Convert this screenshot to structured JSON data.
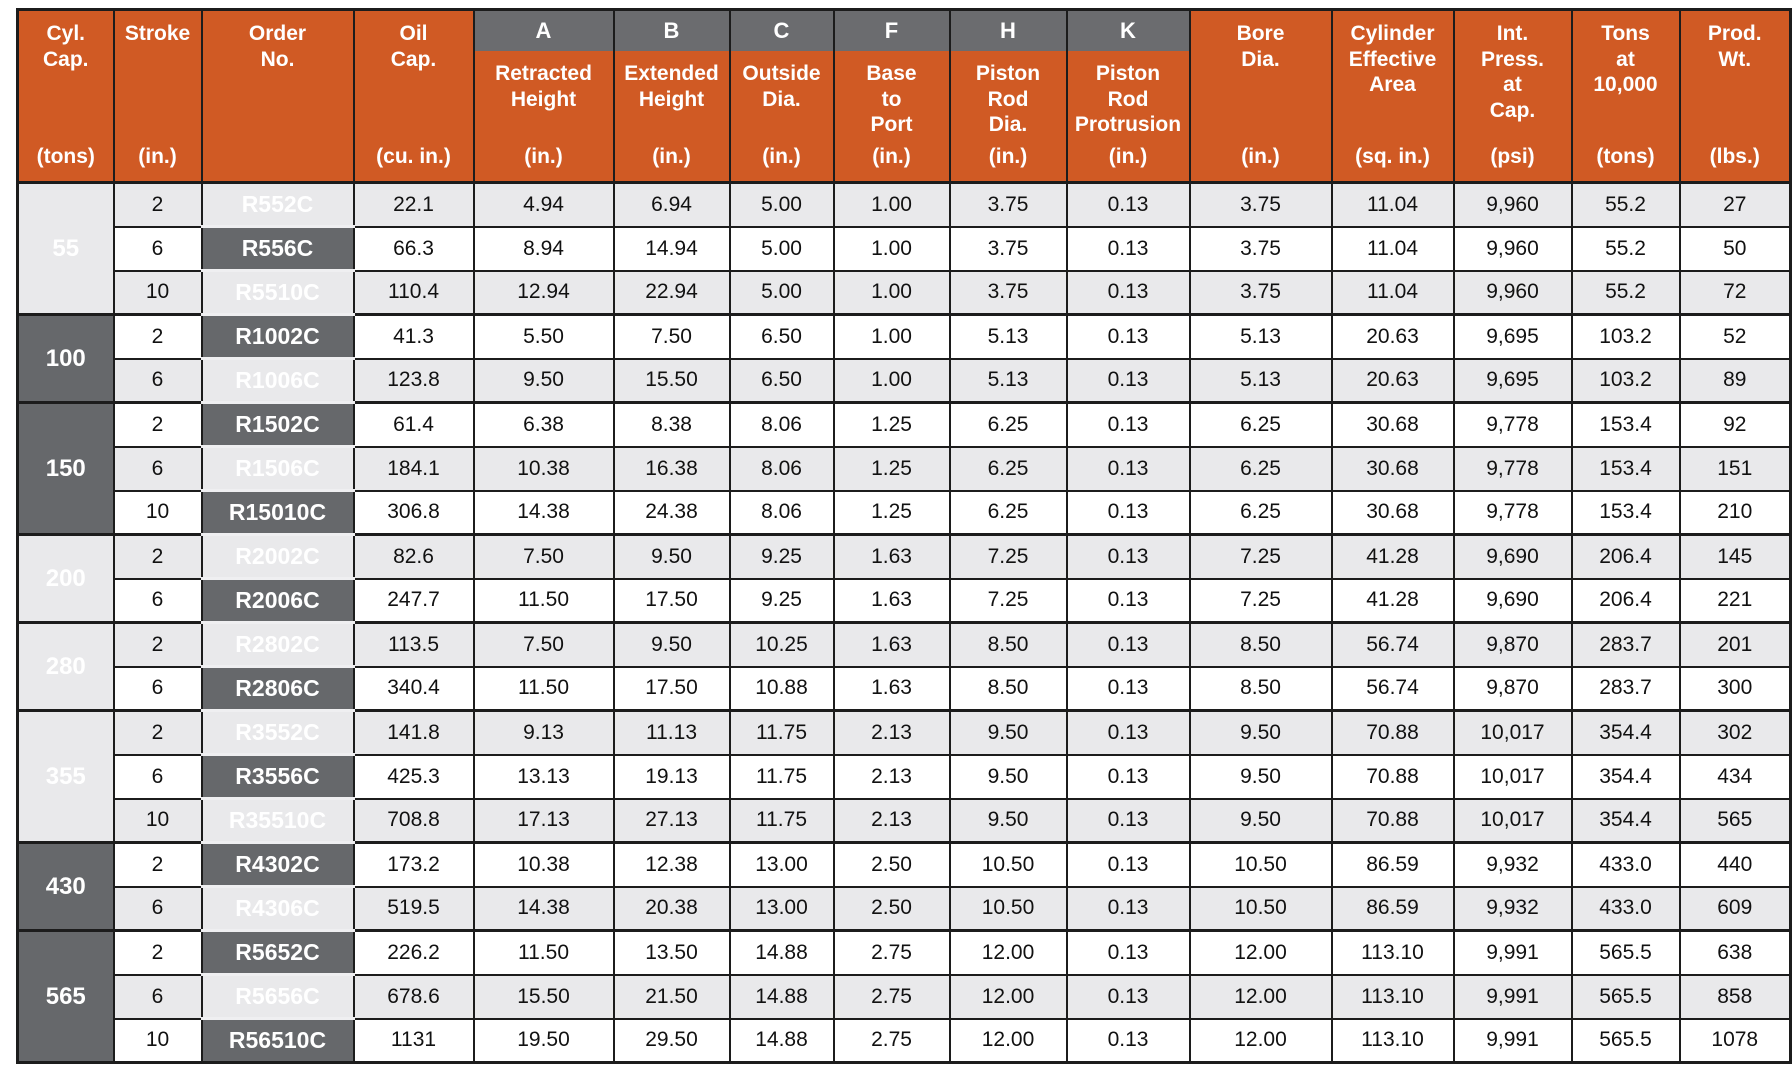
{
  "colors": {
    "header_orange": "#D05A24",
    "header_gray": "#6B6C6F",
    "group_gray": "#66686B",
    "row_stripe": "#E9E9EB",
    "row_white": "#FFFFFF",
    "grid": "#1C1C1C",
    "order_sep": "#EFEFF1"
  },
  "chart_data": {
    "type": "table",
    "columns": [
      {
        "id": "cyl-cap",
        "letter": "",
        "label": "Cyl.\nCap.",
        "unit": "(tons)"
      },
      {
        "id": "stroke",
        "letter": "",
        "label": "Stroke",
        "unit": "(in.)"
      },
      {
        "id": "order-no",
        "letter": "",
        "label": "Order\nNo.",
        "unit": ""
      },
      {
        "id": "oil-cap",
        "letter": "",
        "label": "Oil\nCap.",
        "unit": "(cu. in.)"
      },
      {
        "id": "a-retracted-height",
        "letter": "A",
        "label": "Retracted\nHeight",
        "unit": "(in.)"
      },
      {
        "id": "b-extended-height",
        "letter": "B",
        "label": "Extended\nHeight",
        "unit": "(in.)"
      },
      {
        "id": "c-outside-dia",
        "letter": "C",
        "label": "Outside\nDia.",
        "unit": "(in.)"
      },
      {
        "id": "f-base-to-port",
        "letter": "F",
        "label": "Base\nto\nPort",
        "unit": "(in.)"
      },
      {
        "id": "h-piston-rod-dia",
        "letter": "H",
        "label": "Piston\nRod\nDia.",
        "unit": "(in.)"
      },
      {
        "id": "k-piston-rod-protrusion",
        "letter": "K",
        "label": "Piston\nRod\nProtrusion",
        "unit": "(in.)"
      },
      {
        "id": "bore-dia",
        "letter": "",
        "label": "Bore\nDia.",
        "unit": "(in.)"
      },
      {
        "id": "cylinder-effective-area",
        "letter": "",
        "label": "Cylinder\nEffective\nArea",
        "unit": "(sq. in.)"
      },
      {
        "id": "int-press-at-cap",
        "letter": "",
        "label": "Int.\nPress.\nat\nCap.",
        "unit": "(psi)"
      },
      {
        "id": "tons-at-10000",
        "letter": "",
        "label": "Tons\nat\n10,000",
        "unit": "(tons)"
      },
      {
        "id": "prod-wt",
        "letter": "",
        "label": "Prod.\nWt.",
        "unit": "(lbs.)"
      }
    ],
    "groups": [
      {
        "capacity": "55",
        "rows": [
          [
            "2",
            "R552C",
            "22.1",
            "4.94",
            "6.94",
            "5.00",
            "1.00",
            "3.75",
            "0.13",
            "3.75",
            "11.04",
            "9,960",
            "55.2",
            "27"
          ],
          [
            "6",
            "R556C",
            "66.3",
            "8.94",
            "14.94",
            "5.00",
            "1.00",
            "3.75",
            "0.13",
            "3.75",
            "11.04",
            "9,960",
            "55.2",
            "50"
          ],
          [
            "10",
            "R5510C",
            "110.4",
            "12.94",
            "22.94",
            "5.00",
            "1.00",
            "3.75",
            "0.13",
            "3.75",
            "11.04",
            "9,960",
            "55.2",
            "72"
          ]
        ]
      },
      {
        "capacity": "100",
        "rows": [
          [
            "2",
            "R1002C",
            "41.3",
            "5.50",
            "7.50",
            "6.50",
            "1.00",
            "5.13",
            "0.13",
            "5.13",
            "20.63",
            "9,695",
            "103.2",
            "52"
          ],
          [
            "6",
            "R1006C",
            "123.8",
            "9.50",
            "15.50",
            "6.50",
            "1.00",
            "5.13",
            "0.13",
            "5.13",
            "20.63",
            "9,695",
            "103.2",
            "89"
          ]
        ]
      },
      {
        "capacity": "150",
        "rows": [
          [
            "2",
            "R1502C",
            "61.4",
            "6.38",
            "8.38",
            "8.06",
            "1.25",
            "6.25",
            "0.13",
            "6.25",
            "30.68",
            "9,778",
            "153.4",
            "92"
          ],
          [
            "6",
            "R1506C",
            "184.1",
            "10.38",
            "16.38",
            "8.06",
            "1.25",
            "6.25",
            "0.13",
            "6.25",
            "30.68",
            "9,778",
            "153.4",
            "151"
          ],
          [
            "10",
            "R15010C",
            "306.8",
            "14.38",
            "24.38",
            "8.06",
            "1.25",
            "6.25",
            "0.13",
            "6.25",
            "30.68",
            "9,778",
            "153.4",
            "210"
          ]
        ]
      },
      {
        "capacity": "200",
        "rows": [
          [
            "2",
            "R2002C",
            "82.6",
            "7.50",
            "9.50",
            "9.25",
            "1.63",
            "7.25",
            "0.13",
            "7.25",
            "41.28",
            "9,690",
            "206.4",
            "145"
          ],
          [
            "6",
            "R2006C",
            "247.7",
            "11.50",
            "17.50",
            "9.25",
            "1.63",
            "7.25",
            "0.13",
            "7.25",
            "41.28",
            "9,690",
            "206.4",
            "221"
          ]
        ]
      },
      {
        "capacity": "280",
        "rows": [
          [
            "2",
            "R2802C",
            "113.5",
            "7.50",
            "9.50",
            "10.25",
            "1.63",
            "8.50",
            "0.13",
            "8.50",
            "56.74",
            "9,870",
            "283.7",
            "201"
          ],
          [
            "6",
            "R2806C",
            "340.4",
            "11.50",
            "17.50",
            "10.88",
            "1.63",
            "8.50",
            "0.13",
            "8.50",
            "56.74",
            "9,870",
            "283.7",
            "300"
          ]
        ]
      },
      {
        "capacity": "355",
        "rows": [
          [
            "2",
            "R3552C",
            "141.8",
            "9.13",
            "11.13",
            "11.75",
            "2.13",
            "9.50",
            "0.13",
            "9.50",
            "70.88",
            "10,017",
            "354.4",
            "302"
          ],
          [
            "6",
            "R3556C",
            "425.3",
            "13.13",
            "19.13",
            "11.75",
            "2.13",
            "9.50",
            "0.13",
            "9.50",
            "70.88",
            "10,017",
            "354.4",
            "434"
          ],
          [
            "10",
            "R35510C",
            "708.8",
            "17.13",
            "27.13",
            "11.75",
            "2.13",
            "9.50",
            "0.13",
            "9.50",
            "70.88",
            "10,017",
            "354.4",
            "565"
          ]
        ]
      },
      {
        "capacity": "430",
        "rows": [
          [
            "2",
            "R4302C",
            "173.2",
            "10.38",
            "12.38",
            "13.00",
            "2.50",
            "10.50",
            "0.13",
            "10.50",
            "86.59",
            "9,932",
            "433.0",
            "440"
          ],
          [
            "6",
            "R4306C",
            "519.5",
            "14.38",
            "20.38",
            "13.00",
            "2.50",
            "10.50",
            "0.13",
            "10.50",
            "86.59",
            "9,932",
            "433.0",
            "609"
          ]
        ]
      },
      {
        "capacity": "565",
        "rows": [
          [
            "2",
            "R5652C",
            "226.2",
            "11.50",
            "13.50",
            "14.88",
            "2.75",
            "12.00",
            "0.13",
            "12.00",
            "113.10",
            "9,991",
            "565.5",
            "638"
          ],
          [
            "6",
            "R5656C",
            "678.6",
            "15.50",
            "21.50",
            "14.88",
            "2.75",
            "12.00",
            "0.13",
            "12.00",
            "113.10",
            "9,991",
            "565.5",
            "858"
          ],
          [
            "10",
            "R56510C",
            "1131",
            "19.50",
            "29.50",
            "14.88",
            "2.75",
            "12.00",
            "0.13",
            "12.00",
            "113.10",
            "9,991",
            "565.5",
            "1078"
          ]
        ]
      }
    ]
  }
}
